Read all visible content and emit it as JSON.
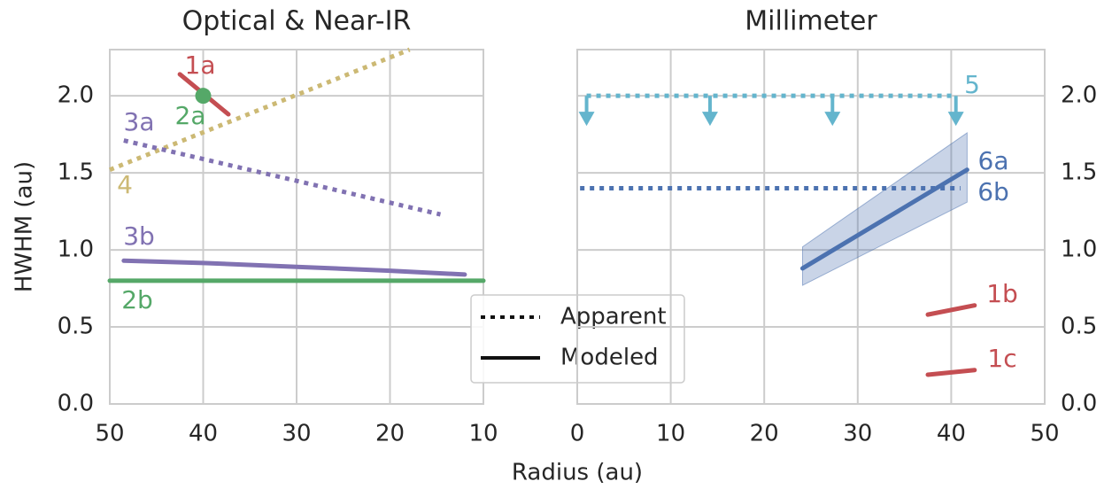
{
  "chart_data": [
    {
      "type": "line",
      "title": "Optical & Near-IR",
      "xlabel": "Radius (au)",
      "ylabel": "HWHM (au)",
      "xlim": [
        50,
        10
      ],
      "xticks": [
        50,
        40,
        30,
        20,
        10
      ],
      "ylim": [
        0,
        2.3
      ],
      "yticks": [
        {
          "value": 0,
          "label": "0.0"
        },
        0.5,
        {
          "value": 1,
          "label": "1.0"
        },
        1.5,
        {
          "value": 2,
          "label": "2.0"
        }
      ],
      "y_axis_side": "left",
      "grid": true,
      "legend": [
        {
          "label": "Apparent",
          "style": "dotted"
        },
        {
          "label": "Modeled",
          "style": "solid"
        }
      ],
      "series": [
        {
          "name": "1a",
          "color": "#c44e52",
          "style": "solid",
          "x": [
            42.5,
            37.3
          ],
          "values": [
            2.14,
            1.88
          ]
        },
        {
          "name": "2a",
          "color": "#55a868",
          "style": "point",
          "x": [
            40
          ],
          "values": [
            2.0
          ]
        },
        {
          "name": "4",
          "color": "#ccb974",
          "style": "dotted",
          "x": [
            50,
            17.9
          ],
          "values": [
            1.52,
            2.3
          ]
        },
        {
          "name": "3a",
          "color": "#8172b2",
          "style": "dotted",
          "x": [
            48.5,
            14.6
          ],
          "values": [
            1.71,
            1.23
          ]
        },
        {
          "name": "3b",
          "color": "#8172b2",
          "style": "solid",
          "x": [
            48.5,
            40,
            30,
            20,
            12
          ],
          "values": [
            0.93,
            0.915,
            0.89,
            0.865,
            0.84
          ]
        },
        {
          "name": "2b",
          "color": "#55a868",
          "style": "solid",
          "x": [
            50,
            10
          ],
          "values": [
            0.8,
            0.8
          ]
        }
      ]
    },
    {
      "type": "line",
      "title": "Millimeter",
      "xlim": [
        0,
        50
      ],
      "xticks": [
        0,
        10,
        20,
        30,
        40,
        50
      ],
      "ylim": [
        0,
        2.3
      ],
      "yticks": [
        {
          "value": 0,
          "label": "0.0"
        },
        0.5,
        {
          "value": 1,
          "label": "1.0"
        },
        1.5,
        {
          "value": 2,
          "label": "2.0"
        }
      ],
      "y_axis_side": "right",
      "grid": true,
      "series": [
        {
          "name": "5",
          "color": "#64b5cd",
          "style": "dotted",
          "upper_limit": true,
          "x": [
            1,
            14.2,
            27.3,
            40.5
          ],
          "values": [
            2.0,
            2.0,
            2.0,
            2.0
          ]
        },
        {
          "name": "6a",
          "color": "#4c72b0",
          "style": "solid",
          "x": [
            24.1,
            41.7
          ],
          "values": [
            0.88,
            1.52
          ],
          "lower": [
            0.77,
            1.31
          ],
          "upper": [
            1.02,
            1.76
          ]
        },
        {
          "name": "6b",
          "color": "#4c72b0",
          "style": "dotted",
          "x": [
            0.3,
            41
          ],
          "values": [
            1.4,
            1.4
          ]
        },
        {
          "name": "1b",
          "color": "#c44e52",
          "style": "solid",
          "x": [
            37.5,
            42.5
          ],
          "values": [
            0.58,
            0.64
          ]
        },
        {
          "name": "1c",
          "color": "#c44e52",
          "style": "solid",
          "x": [
            37.5,
            42.5
          ],
          "values": [
            0.19,
            0.22
          ]
        }
      ]
    }
  ]
}
